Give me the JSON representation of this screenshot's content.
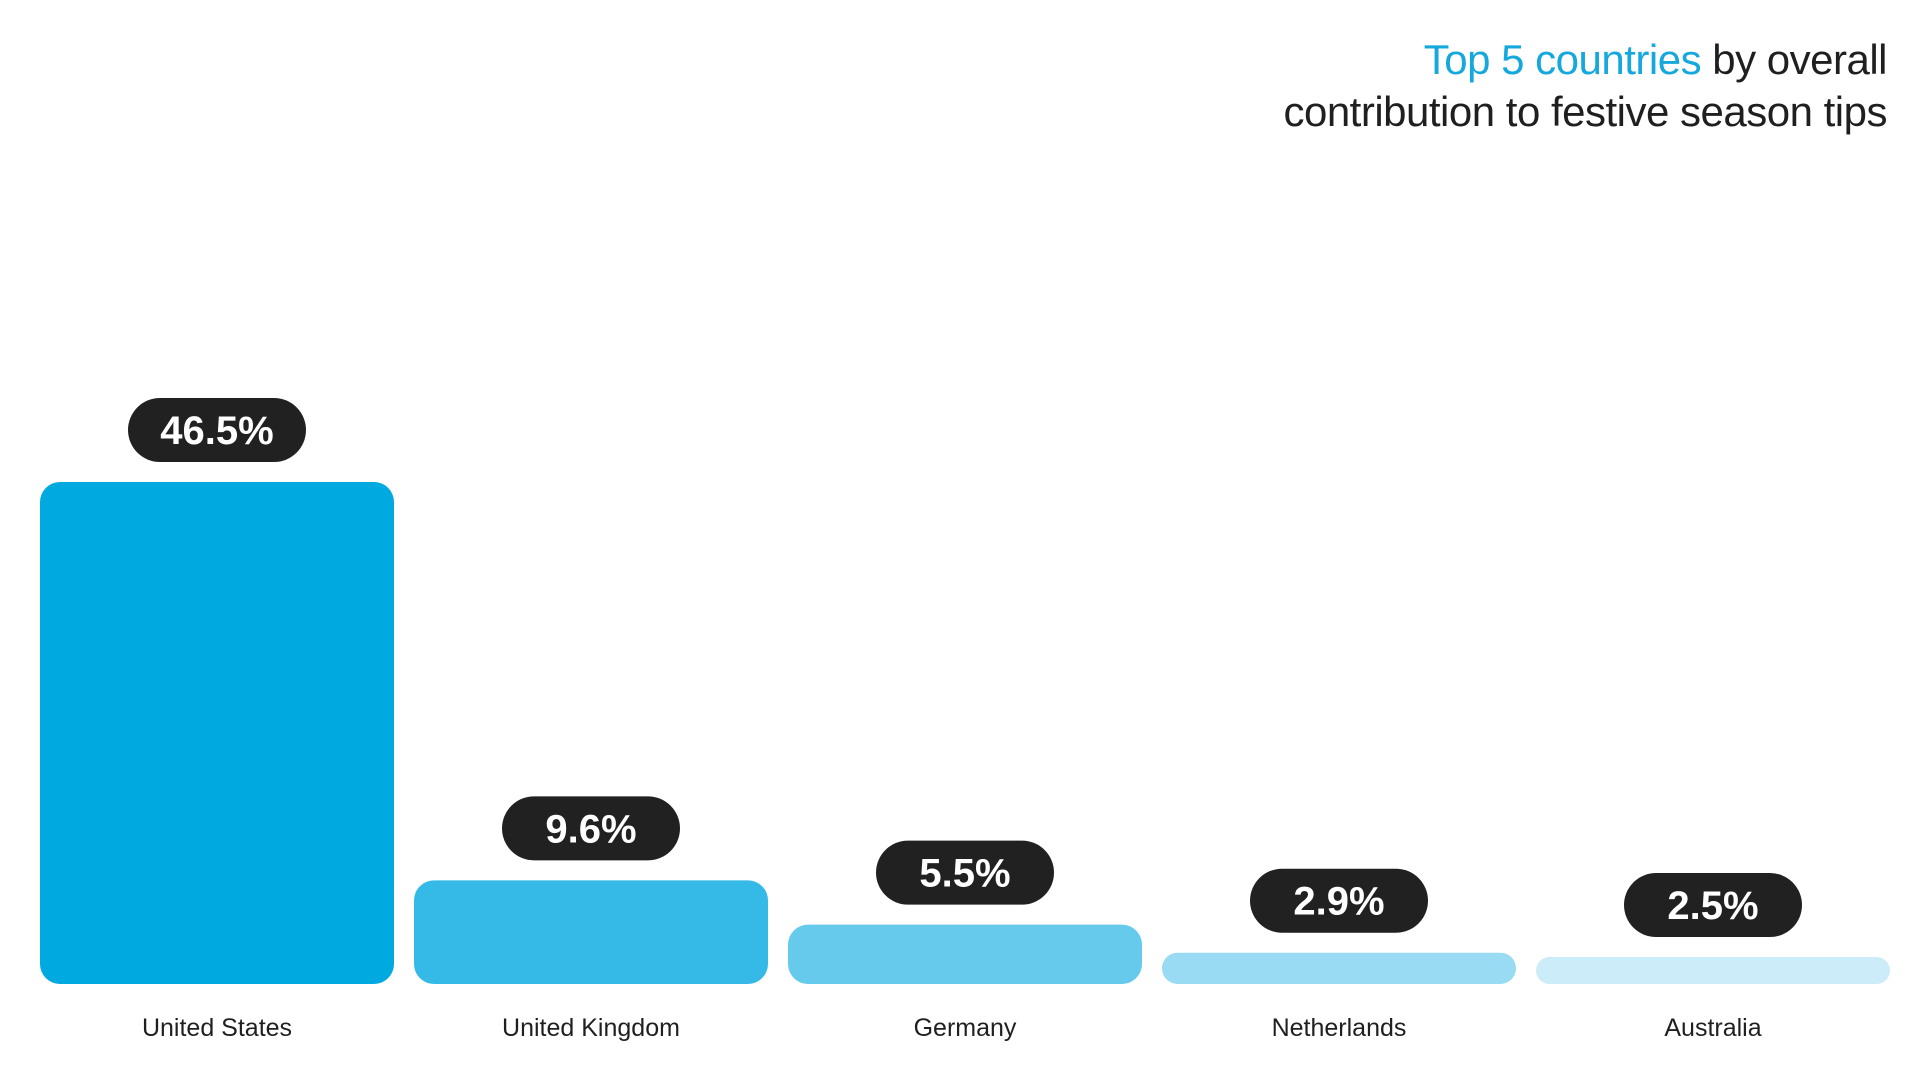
{
  "chart_data": {
    "type": "bar",
    "title_highlight": "Top 5 countries",
    "title_rest_line1": " by overall",
    "title_line2": "contribution to festive season tips",
    "categories": [
      "United States",
      "United Kingdom",
      "Germany",
      "Netherlands",
      "Australia"
    ],
    "values": [
      46.5,
      9.6,
      5.5,
      2.9,
      2.5
    ],
    "value_labels": [
      "46.5%",
      "9.6%",
      "5.5%",
      "2.9%",
      "2.5%"
    ],
    "bar_colors": [
      "#00a9e0",
      "#35bae7",
      "#66caed",
      "#98dbf2",
      "#cbecf8"
    ],
    "label_bg_color": "#212121",
    "accent_color": "#15a8dd",
    "ylim": [
      0,
      46.5
    ],
    "grid": false,
    "legend": "none"
  }
}
